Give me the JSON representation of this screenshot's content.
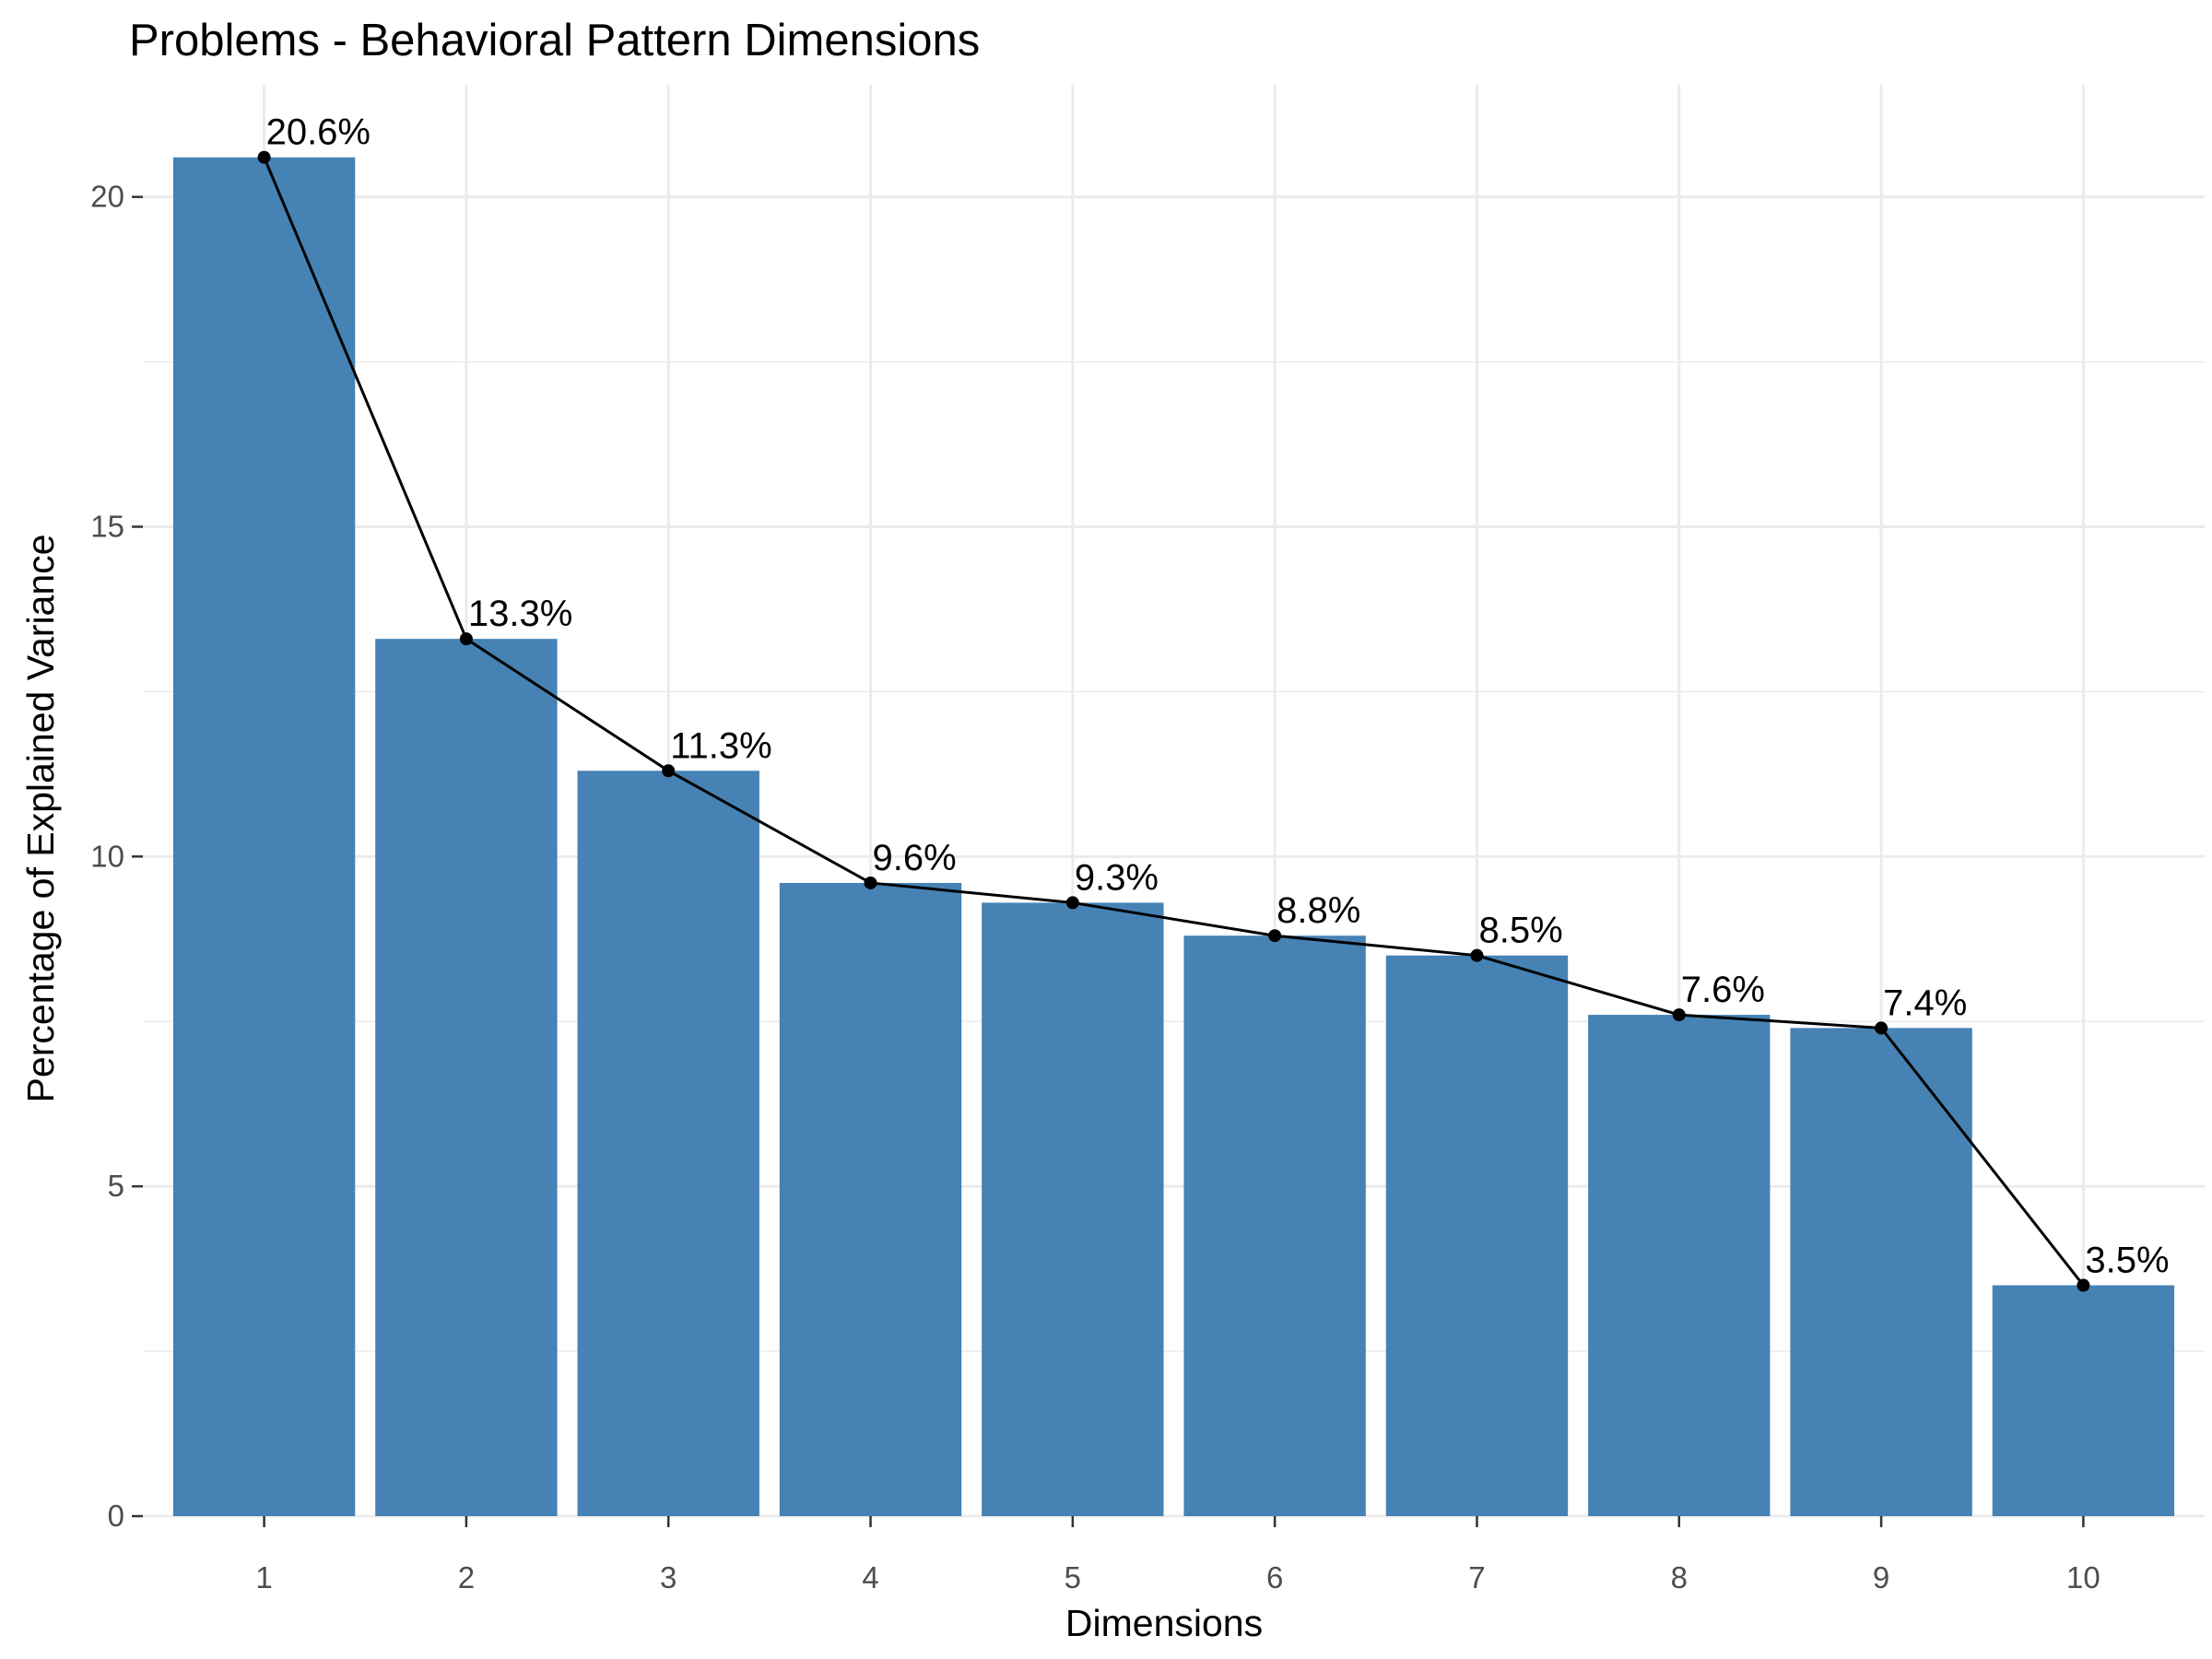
{
  "chart_data": {
    "type": "bar",
    "title": "Problems - Behavioral Pattern Dimensions",
    "xlabel": "Dimensions",
    "ylabel": "Percentage of Explained Variance",
    "categories": [
      "1",
      "2",
      "3",
      "4",
      "5",
      "6",
      "7",
      "8",
      "9",
      "10"
    ],
    "values": [
      20.6,
      13.3,
      11.3,
      9.6,
      9.3,
      8.8,
      8.5,
      7.6,
      7.4,
      3.5
    ],
    "value_labels": [
      "20.6%",
      "13.3%",
      "11.3%",
      "9.6%",
      "9.3%",
      "8.8%",
      "8.5%",
      "7.6%",
      "7.4%",
      "3.5%"
    ],
    "overlay": "line-with-points",
    "ylim": [
      0,
      21.7
    ],
    "yticks": [
      0,
      5,
      10,
      15,
      20
    ],
    "ytick_labels": [
      "0",
      "5",
      "10",
      "15",
      "20"
    ],
    "grid": true,
    "legend": "none",
    "colors": {
      "bar": "#4682b4",
      "line": "#000000",
      "grid": "#ebebeb",
      "background": "#ffffff"
    }
  }
}
